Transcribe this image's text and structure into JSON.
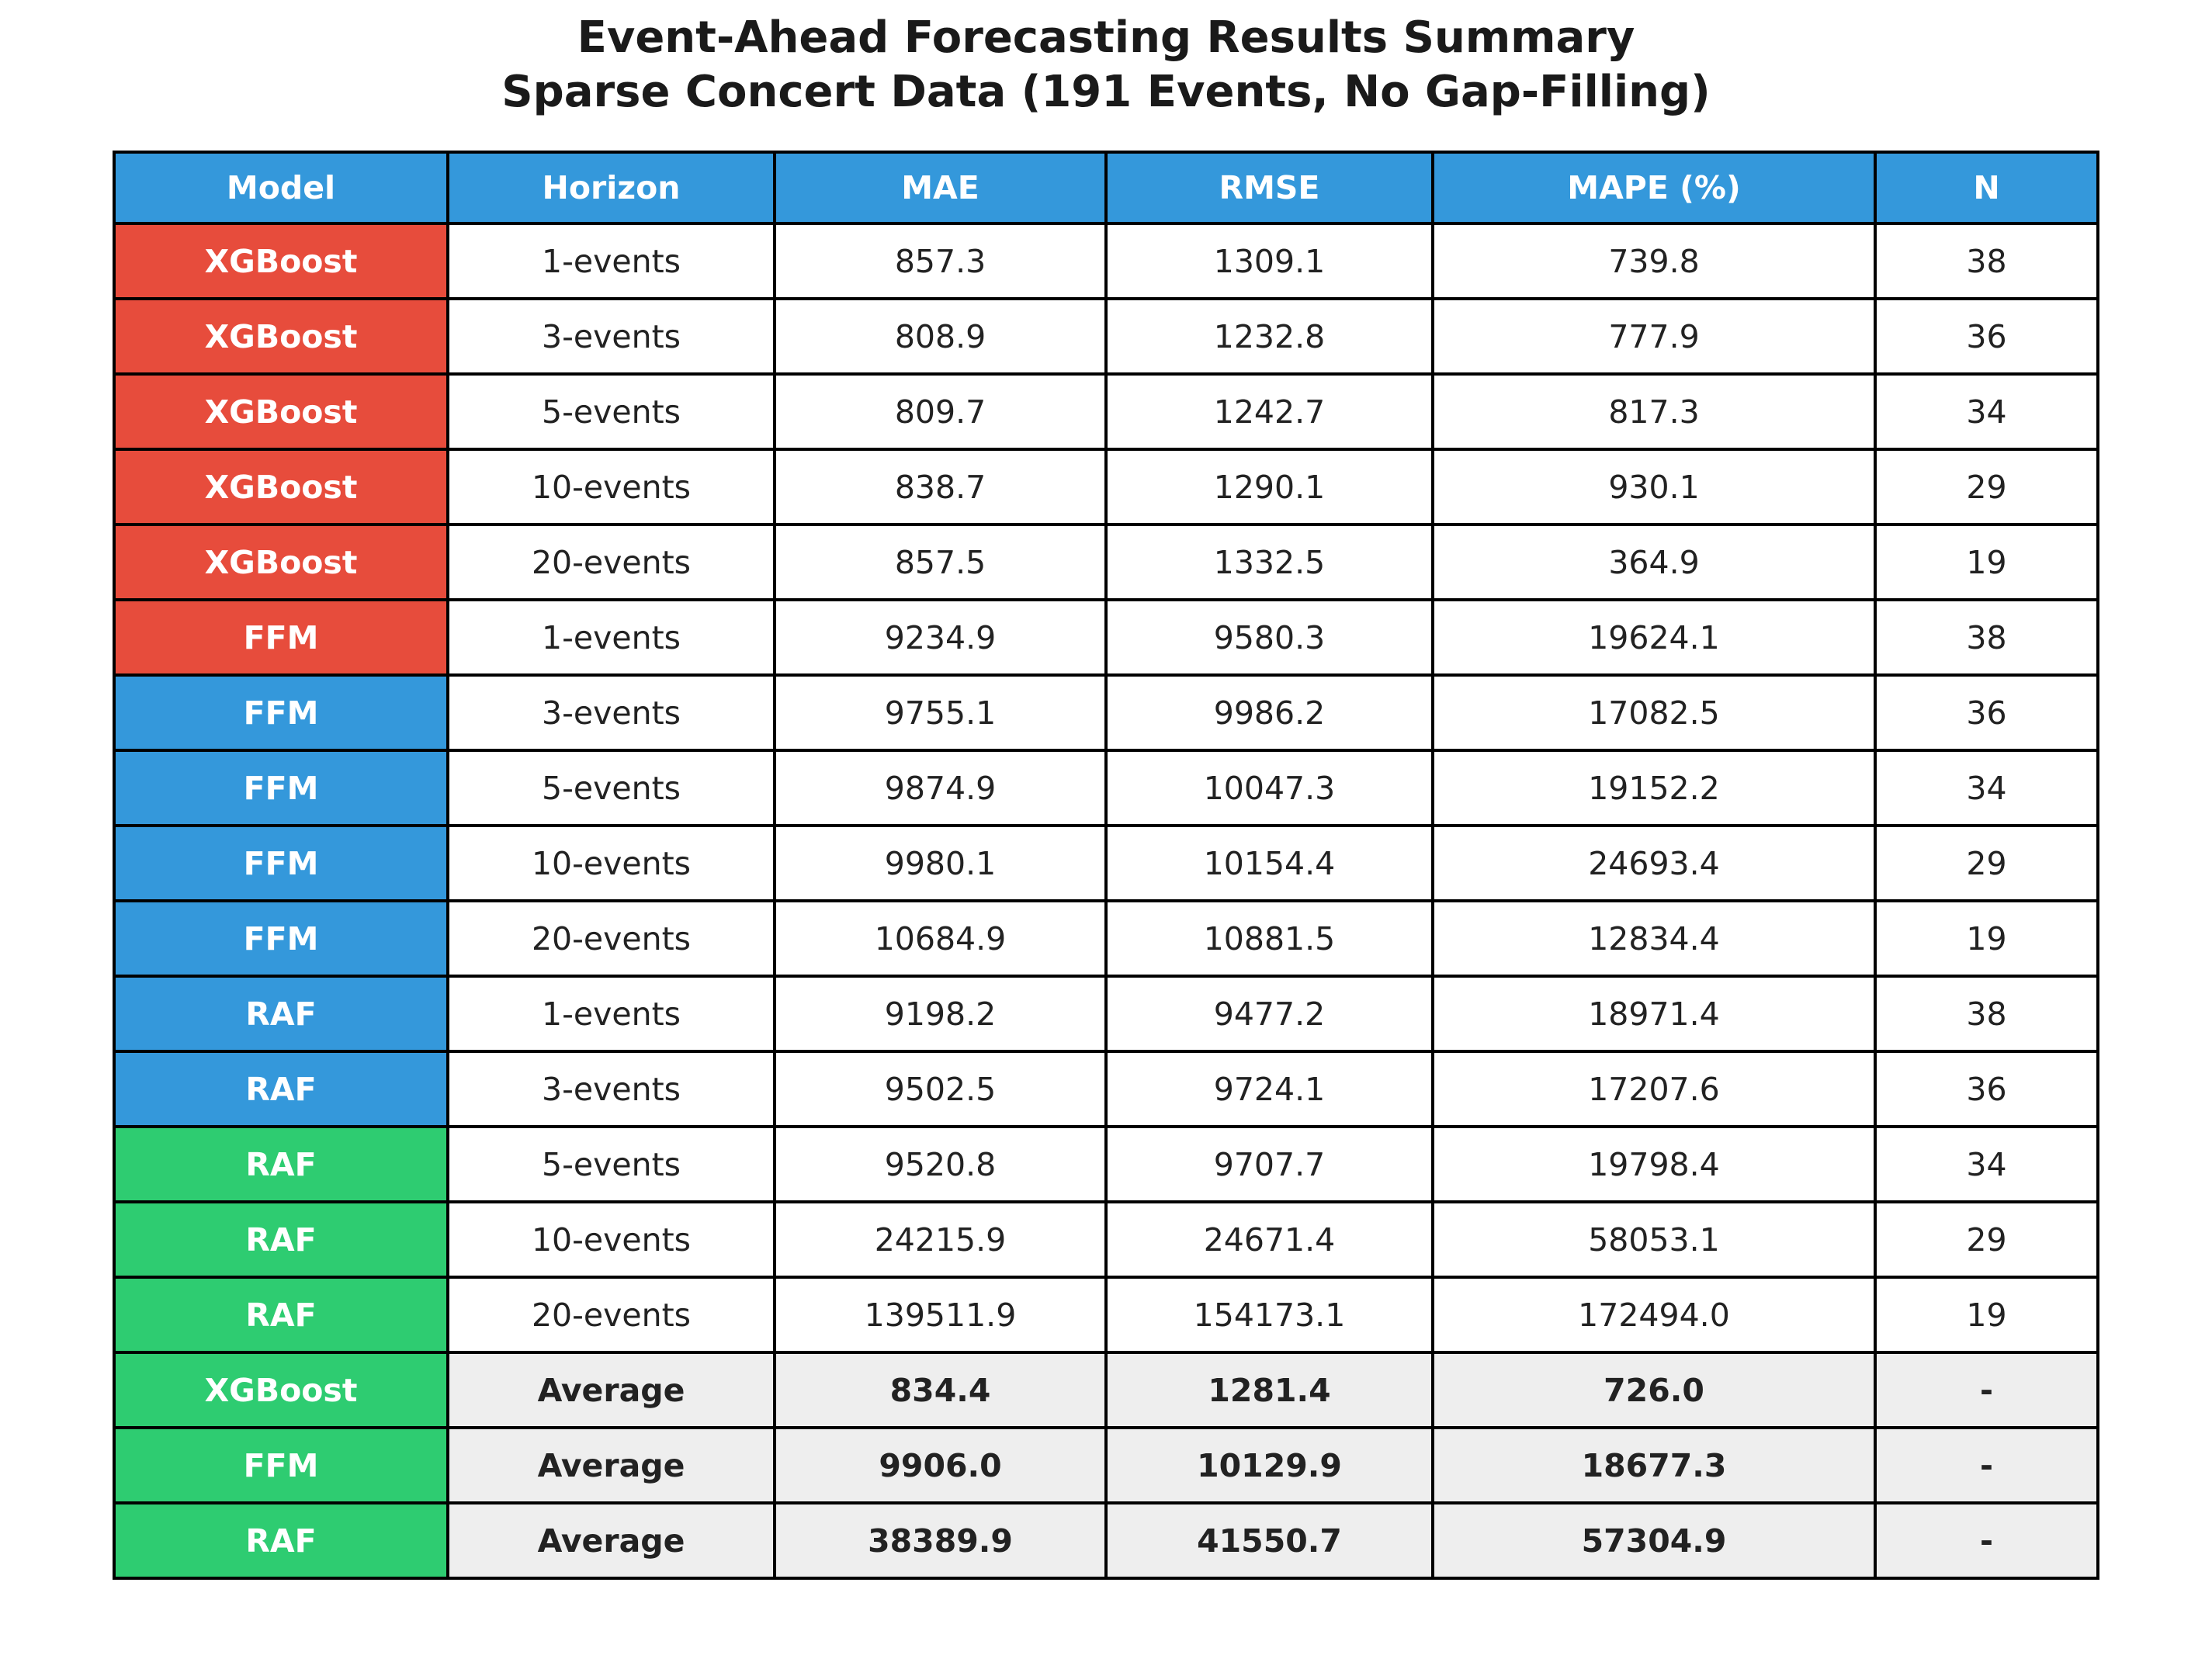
{
  "title": {
    "line1": "Event-Ahead Forecasting Results Summary",
    "line2": "Sparse Concert Data (191 Events, No Gap-Filling)"
  },
  "colors": {
    "header_blue": "#3498db",
    "block_red": "#e74c3c",
    "block_blue": "#3498db",
    "block_green": "#2ecc71",
    "average_row_bg": "#eeeeee",
    "border_black": "#000000",
    "title_text": "#1a1a1a",
    "cell_text": "#222222",
    "cell_bg": "#ffffff"
  },
  "chart_data": {
    "type": "table",
    "title": "Event-Ahead Forecasting Results Summary — Sparse Concert Data (191 Events, No Gap-Filling)",
    "columns": [
      "Model",
      "Horizon",
      "MAE",
      "RMSE",
      "MAPE (%)",
      "N"
    ],
    "rows": [
      {
        "model": "XGBoost",
        "horizon": "1-events",
        "mae": "857.3",
        "rmse": "1309.1",
        "mape": "739.8",
        "n": "38"
      },
      {
        "model": "XGBoost",
        "horizon": "3-events",
        "mae": "808.9",
        "rmse": "1232.8",
        "mape": "777.9",
        "n": "36"
      },
      {
        "model": "XGBoost",
        "horizon": "5-events",
        "mae": "809.7",
        "rmse": "1242.7",
        "mape": "817.3",
        "n": "34"
      },
      {
        "model": "XGBoost",
        "horizon": "10-events",
        "mae": "838.7",
        "rmse": "1290.1",
        "mape": "930.1",
        "n": "29"
      },
      {
        "model": "XGBoost",
        "horizon": "20-events",
        "mae": "857.5",
        "rmse": "1332.5",
        "mape": "364.9",
        "n": "19"
      },
      {
        "model": "FFM",
        "horizon": "1-events",
        "mae": "9234.9",
        "rmse": "9580.3",
        "mape": "19624.1",
        "n": "38"
      },
      {
        "model": "FFM",
        "horizon": "3-events",
        "mae": "9755.1",
        "rmse": "9986.2",
        "mape": "17082.5",
        "n": "36"
      },
      {
        "model": "FFM",
        "horizon": "5-events",
        "mae": "9874.9",
        "rmse": "10047.3",
        "mape": "19152.2",
        "n": "34"
      },
      {
        "model": "FFM",
        "horizon": "10-events",
        "mae": "9980.1",
        "rmse": "10154.4",
        "mape": "24693.4",
        "n": "29"
      },
      {
        "model": "FFM",
        "horizon": "20-events",
        "mae": "10684.9",
        "rmse": "10881.5",
        "mape": "12834.4",
        "n": "19"
      },
      {
        "model": "RAF",
        "horizon": "1-events",
        "mae": "9198.2",
        "rmse": "9477.2",
        "mape": "18971.4",
        "n": "38"
      },
      {
        "model": "RAF",
        "horizon": "3-events",
        "mae": "9502.5",
        "rmse": "9724.1",
        "mape": "17207.6",
        "n": "36"
      },
      {
        "model": "RAF",
        "horizon": "5-events",
        "mae": "9520.8",
        "rmse": "9707.7",
        "mape": "19798.4",
        "n": "34"
      },
      {
        "model": "RAF",
        "horizon": "10-events",
        "mae": "24215.9",
        "rmse": "24671.4",
        "mape": "58053.1",
        "n": "29"
      },
      {
        "model": "RAF",
        "horizon": "20-events",
        "mae": "139511.9",
        "rmse": "154173.1",
        "mape": "172494.0",
        "n": "19"
      },
      {
        "model": "XGBoost",
        "horizon": "Average",
        "mae": "834.4",
        "rmse": "1281.4",
        "mape": "726.0",
        "n": "-"
      },
      {
        "model": "FFM",
        "horizon": "Average",
        "mae": "9906.0",
        "rmse": "10129.9",
        "mape": "18677.3",
        "n": "-"
      },
      {
        "model": "RAF",
        "horizon": "Average",
        "mae": "38389.9",
        "rmse": "41550.7",
        "mape": "57304.9",
        "n": "-"
      }
    ]
  }
}
